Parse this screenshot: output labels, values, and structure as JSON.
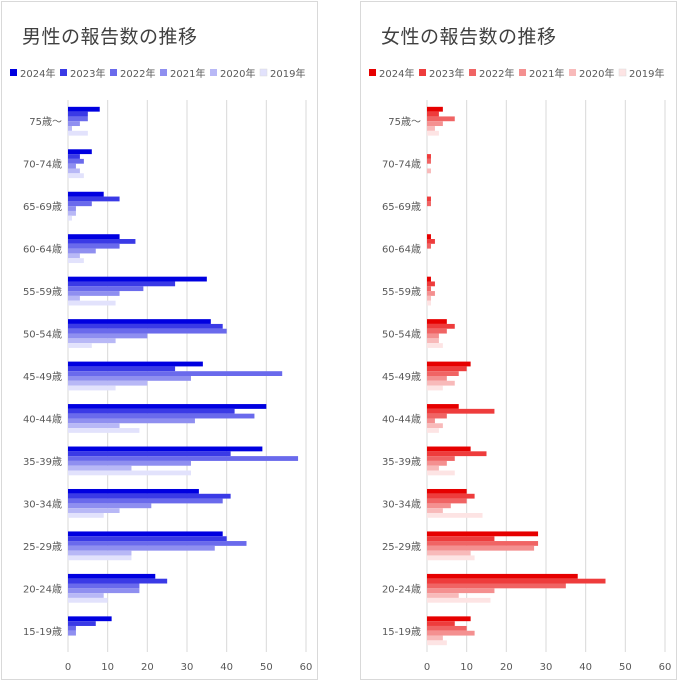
{
  "chart_data": [
    {
      "type": "bar",
      "orientation": "horizontal",
      "title": "男性の報告数の推移",
      "categories": [
        "75歳～",
        "70-74歳",
        "65-69歳",
        "60-64歳",
        "55-59歳",
        "50-54歳",
        "45-49歳",
        "40-44歳",
        "35-39歳",
        "30-34歳",
        "25-29歳",
        "20-24歳",
        "15-19歳"
      ],
      "xlim": [
        0,
        60
      ],
      "xticks": [
        "0",
        "10",
        "20",
        "30",
        "40",
        "50",
        "60"
      ],
      "grid": true,
      "legend_position": "top",
      "series": [
        {
          "name": "2024年",
          "color": "#0000e0",
          "values": [
            8,
            6,
            9,
            13,
            35,
            36,
            34,
            50,
            49,
            33,
            39,
            22,
            11
          ]
        },
        {
          "name": "2023年",
          "color": "#3a3ae6",
          "values": [
            5,
            3,
            13,
            17,
            27,
            39,
            27,
            42,
            41,
            41,
            40,
            25,
            7
          ]
        },
        {
          "name": "2022年",
          "color": "#6a6aec",
          "values": [
            5,
            4,
            6,
            13,
            19,
            40,
            54,
            47,
            58,
            39,
            45,
            18,
            2
          ]
        },
        {
          "name": "2021年",
          "color": "#8f8ff0",
          "values": [
            3,
            2,
            2,
            7,
            13,
            20,
            31,
            32,
            31,
            21,
            37,
            18,
            2
          ]
        },
        {
          "name": "2020年",
          "color": "#b8b8f6",
          "values": [
            1,
            3,
            2,
            3,
            3,
            12,
            20,
            13,
            16,
            13,
            16,
            9,
            0
          ]
        },
        {
          "name": "2019年",
          "color": "#e2e2fc",
          "values": [
            5,
            4,
            1,
            4,
            12,
            6,
            12,
            18,
            31,
            9,
            16,
            10,
            0
          ]
        }
      ]
    },
    {
      "type": "bar",
      "orientation": "horizontal",
      "title": "女性の報告数の推移",
      "categories": [
        "75歳～",
        "70-74歳",
        "65-69歳",
        "60-64歳",
        "55-59歳",
        "50-54歳",
        "45-49歳",
        "40-44歳",
        "35-39歳",
        "30-34歳",
        "25-29歳",
        "20-24歳",
        "15-19歳"
      ],
      "xlim": [
        0,
        60
      ],
      "xticks": [
        "0",
        "10",
        "20",
        "30",
        "40",
        "50",
        "60"
      ],
      "grid": true,
      "legend_position": "top",
      "series": [
        {
          "name": "2024年",
          "color": "#e60000",
          "values": [
            4,
            0,
            0,
            1,
            1,
            5,
            11,
            8,
            11,
            10,
            28,
            38,
            11
          ]
        },
        {
          "name": "2023年",
          "color": "#ee3c3c",
          "values": [
            3,
            1,
            1,
            2,
            2,
            7,
            10,
            17,
            15,
            12,
            17,
            45,
            7
          ]
        },
        {
          "name": "2022年",
          "color": "#f06464",
          "values": [
            7,
            1,
            1,
            1,
            1,
            5,
            8,
            5,
            7,
            10,
            28,
            35,
            10
          ]
        },
        {
          "name": "2021年",
          "color": "#f49090",
          "values": [
            4,
            0,
            0,
            0,
            2,
            3,
            5,
            2,
            5,
            6,
            27,
            17,
            12
          ]
        },
        {
          "name": "2020年",
          "color": "#f8baba",
          "values": [
            2,
            1,
            0,
            0,
            1,
            3,
            7,
            4,
            3,
            4,
            11,
            8,
            4
          ]
        },
        {
          "name": "2019年",
          "color": "#fde4e4",
          "values": [
            3,
            0,
            0,
            0,
            1,
            4,
            4,
            3,
            7,
            14,
            12,
            16,
            5
          ]
        }
      ]
    }
  ]
}
